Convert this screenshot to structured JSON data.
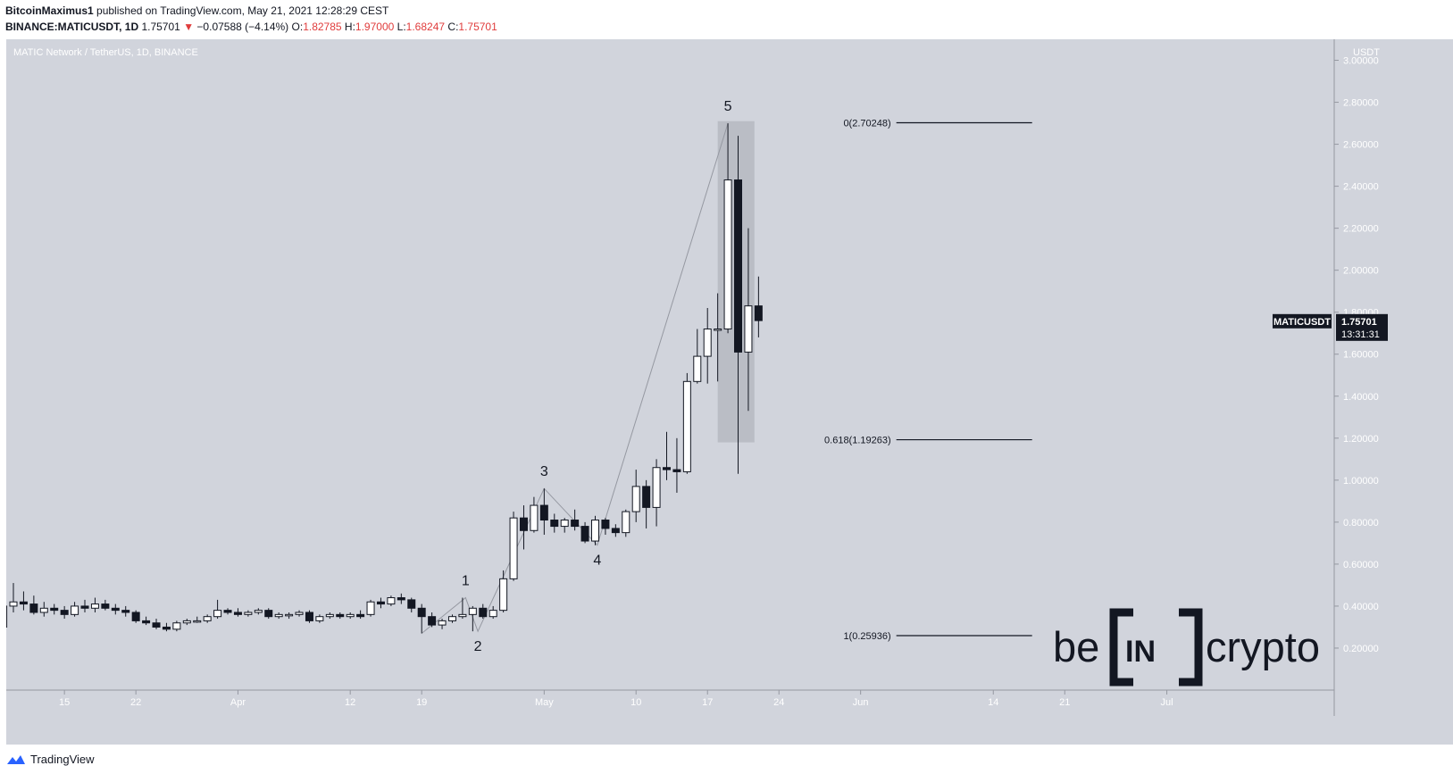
{
  "header": {
    "author": "BitcoinMaximus1",
    "published": " published on TradingView.com, May 21, 2021 12:28:29 CEST",
    "symbol": "BINANCE:MATICUSDT, 1D",
    "last": "1.75701",
    "arrow": "▼",
    "change": "−0.07588 (−4.14%)",
    "o_label": "O:",
    "o_val": "1.82785",
    "h_label": "H:",
    "h_val": "1.97000",
    "l_label": "L:",
    "l_val": "1.68247",
    "c_label": "C:",
    "c_val": "1.75701"
  },
  "footer": {
    "logo_text": "TradingView"
  },
  "colors": {
    "bg": "#d1d4dc",
    "up": "#ffffff",
    "down": "#131722",
    "accent_label_bg": "#131722"
  },
  "chart_data": {
    "type": "candlestick",
    "title": "MATIC Network / TetherUS, 1D, BINANCE",
    "currency": "USDT",
    "y_ticks": [
      "0.20000",
      "0.40000",
      "0.60000",
      "0.80000",
      "1.00000",
      "1.20000",
      "1.40000",
      "1.60000",
      "1.80000",
      "2.00000",
      "2.20000",
      "2.40000",
      "2.60000",
      "2.80000",
      "3.00000"
    ],
    "ylim": [
      0.0,
      3.1
    ],
    "x_ticks": [
      "15",
      "22",
      "Apr",
      "12",
      "19",
      "May",
      "10",
      "17",
      "24",
      "Jun",
      "14",
      "21",
      "Jul"
    ],
    "x_tick_days": [
      14,
      21,
      31,
      42,
      49,
      61,
      70,
      77,
      84,
      92,
      105,
      112,
      122
    ],
    "xlim": [
      8.3,
      138.4
    ],
    "day_origin": "2021-03-01",
    "candles": [
      {
        "d": 8,
        "o": 0.3,
        "h": 0.45,
        "l": 0.26,
        "c": 0.4
      },
      {
        "d": 9,
        "o": 0.4,
        "h": 0.51,
        "l": 0.37,
        "c": 0.42
      },
      {
        "d": 10,
        "o": 0.42,
        "h": 0.47,
        "l": 0.38,
        "c": 0.41
      },
      {
        "d": 11,
        "o": 0.41,
        "h": 0.45,
        "l": 0.36,
        "c": 0.37
      },
      {
        "d": 12,
        "o": 0.37,
        "h": 0.42,
        "l": 0.35,
        "c": 0.39
      },
      {
        "d": 13,
        "o": 0.39,
        "h": 0.41,
        "l": 0.36,
        "c": 0.38
      },
      {
        "d": 14,
        "o": 0.38,
        "h": 0.4,
        "l": 0.34,
        "c": 0.36
      },
      {
        "d": 15,
        "o": 0.36,
        "h": 0.42,
        "l": 0.35,
        "c": 0.4
      },
      {
        "d": 16,
        "o": 0.4,
        "h": 0.43,
        "l": 0.37,
        "c": 0.39
      },
      {
        "d": 17,
        "o": 0.39,
        "h": 0.44,
        "l": 0.37,
        "c": 0.41
      },
      {
        "d": 18,
        "o": 0.41,
        "h": 0.43,
        "l": 0.38,
        "c": 0.39
      },
      {
        "d": 19,
        "o": 0.39,
        "h": 0.41,
        "l": 0.36,
        "c": 0.38
      },
      {
        "d": 20,
        "o": 0.38,
        "h": 0.4,
        "l": 0.35,
        "c": 0.37
      },
      {
        "d": 21,
        "o": 0.37,
        "h": 0.38,
        "l": 0.32,
        "c": 0.33
      },
      {
        "d": 22,
        "o": 0.33,
        "h": 0.35,
        "l": 0.31,
        "c": 0.32
      },
      {
        "d": 23,
        "o": 0.32,
        "h": 0.34,
        "l": 0.29,
        "c": 0.3
      },
      {
        "d": 24,
        "o": 0.3,
        "h": 0.32,
        "l": 0.28,
        "c": 0.29
      },
      {
        "d": 25,
        "o": 0.29,
        "h": 0.33,
        "l": 0.28,
        "c": 0.32
      },
      {
        "d": 26,
        "o": 0.32,
        "h": 0.34,
        "l": 0.31,
        "c": 0.33
      },
      {
        "d": 27,
        "o": 0.33,
        "h": 0.35,
        "l": 0.32,
        "c": 0.33
      },
      {
        "d": 28,
        "o": 0.33,
        "h": 0.36,
        "l": 0.32,
        "c": 0.35
      },
      {
        "d": 29,
        "o": 0.35,
        "h": 0.43,
        "l": 0.34,
        "c": 0.38
      },
      {
        "d": 30,
        "o": 0.38,
        "h": 0.39,
        "l": 0.36,
        "c": 0.37
      },
      {
        "d": 31,
        "o": 0.37,
        "h": 0.39,
        "l": 0.35,
        "c": 0.36
      },
      {
        "d": 32,
        "o": 0.36,
        "h": 0.38,
        "l": 0.35,
        "c": 0.37
      },
      {
        "d": 33,
        "o": 0.37,
        "h": 0.39,
        "l": 0.36,
        "c": 0.38
      },
      {
        "d": 34,
        "o": 0.38,
        "h": 0.39,
        "l": 0.34,
        "c": 0.35
      },
      {
        "d": 35,
        "o": 0.35,
        "h": 0.37,
        "l": 0.34,
        "c": 0.36
      },
      {
        "d": 36,
        "o": 0.36,
        "h": 0.37,
        "l": 0.34,
        "c": 0.36
      },
      {
        "d": 37,
        "o": 0.36,
        "h": 0.38,
        "l": 0.35,
        "c": 0.37
      },
      {
        "d": 38,
        "o": 0.37,
        "h": 0.38,
        "l": 0.32,
        "c": 0.33
      },
      {
        "d": 39,
        "o": 0.33,
        "h": 0.36,
        "l": 0.32,
        "c": 0.35
      },
      {
        "d": 40,
        "o": 0.35,
        "h": 0.37,
        "l": 0.34,
        "c": 0.36
      },
      {
        "d": 41,
        "o": 0.36,
        "h": 0.37,
        "l": 0.34,
        "c": 0.35
      },
      {
        "d": 42,
        "o": 0.35,
        "h": 0.37,
        "l": 0.34,
        "c": 0.36
      },
      {
        "d": 43,
        "o": 0.36,
        "h": 0.38,
        "l": 0.34,
        "c": 0.35
      },
      {
        "d": 44,
        "o": 0.36,
        "h": 0.43,
        "l": 0.35,
        "c": 0.42
      },
      {
        "d": 45,
        "o": 0.42,
        "h": 0.44,
        "l": 0.39,
        "c": 0.41
      },
      {
        "d": 46,
        "o": 0.41,
        "h": 0.45,
        "l": 0.4,
        "c": 0.44
      },
      {
        "d": 47,
        "o": 0.44,
        "h": 0.46,
        "l": 0.41,
        "c": 0.43
      },
      {
        "d": 48,
        "o": 0.43,
        "h": 0.44,
        "l": 0.37,
        "c": 0.39
      },
      {
        "d": 49,
        "o": 0.39,
        "h": 0.41,
        "l": 0.27,
        "c": 0.35
      },
      {
        "d": 50,
        "o": 0.35,
        "h": 0.37,
        "l": 0.3,
        "c": 0.31
      },
      {
        "d": 51,
        "o": 0.31,
        "h": 0.34,
        "l": 0.29,
        "c": 0.33
      },
      {
        "d": 52,
        "o": 0.33,
        "h": 0.36,
        "l": 0.32,
        "c": 0.35
      },
      {
        "d": 53,
        "o": 0.35,
        "h": 0.44,
        "l": 0.34,
        "c": 0.36
      },
      {
        "d": 54,
        "o": 0.36,
        "h": 0.4,
        "l": 0.28,
        "c": 0.39
      },
      {
        "d": 55,
        "o": 0.39,
        "h": 0.41,
        "l": 0.34,
        "c": 0.35
      },
      {
        "d": 56,
        "o": 0.35,
        "h": 0.4,
        "l": 0.34,
        "c": 0.38
      },
      {
        "d": 57,
        "o": 0.38,
        "h": 0.57,
        "l": 0.37,
        "c": 0.53
      },
      {
        "d": 58,
        "o": 0.53,
        "h": 0.85,
        "l": 0.52,
        "c": 0.82
      },
      {
        "d": 59,
        "o": 0.82,
        "h": 0.88,
        "l": 0.67,
        "c": 0.76
      },
      {
        "d": 60,
        "o": 0.76,
        "h": 0.92,
        "l": 0.75,
        "c": 0.88
      },
      {
        "d": 61,
        "o": 0.88,
        "h": 0.96,
        "l": 0.74,
        "c": 0.81
      },
      {
        "d": 62,
        "o": 0.81,
        "h": 0.84,
        "l": 0.75,
        "c": 0.78
      },
      {
        "d": 63,
        "o": 0.78,
        "h": 0.82,
        "l": 0.75,
        "c": 0.81
      },
      {
        "d": 64,
        "o": 0.81,
        "h": 0.86,
        "l": 0.76,
        "c": 0.78
      },
      {
        "d": 65,
        "o": 0.78,
        "h": 0.8,
        "l": 0.7,
        "c": 0.71
      },
      {
        "d": 66,
        "o": 0.71,
        "h": 0.83,
        "l": 0.69,
        "c": 0.81
      },
      {
        "d": 67,
        "o": 0.81,
        "h": 0.82,
        "l": 0.74,
        "c": 0.77
      },
      {
        "d": 68,
        "o": 0.77,
        "h": 0.79,
        "l": 0.73,
        "c": 0.75
      },
      {
        "d": 69,
        "o": 0.75,
        "h": 0.86,
        "l": 0.73,
        "c": 0.85
      },
      {
        "d": 70,
        "o": 0.85,
        "h": 1.05,
        "l": 0.8,
        "c": 0.97
      },
      {
        "d": 71,
        "o": 0.97,
        "h": 1.0,
        "l": 0.77,
        "c": 0.87
      },
      {
        "d": 72,
        "o": 0.87,
        "h": 1.1,
        "l": 0.78,
        "c": 1.06
      },
      {
        "d": 73,
        "o": 1.06,
        "h": 1.23,
        "l": 1.0,
        "c": 1.05
      },
      {
        "d": 74,
        "o": 1.05,
        "h": 1.2,
        "l": 0.94,
        "c": 1.04
      },
      {
        "d": 75,
        "o": 1.04,
        "h": 1.51,
        "l": 1.03,
        "c": 1.47
      },
      {
        "d": 76,
        "o": 1.47,
        "h": 1.72,
        "l": 1.46,
        "c": 1.59
      },
      {
        "d": 77,
        "o": 1.59,
        "h": 1.82,
        "l": 1.46,
        "c": 1.72
      },
      {
        "d": 78,
        "o": 1.72,
        "h": 1.89,
        "l": 1.47,
        "c": 1.72
      },
      {
        "d": 79,
        "o": 1.72,
        "h": 2.7,
        "l": 1.7,
        "c": 2.43
      },
      {
        "d": 80,
        "o": 2.43,
        "h": 2.64,
        "l": 1.03,
        "c": 1.61
      },
      {
        "d": 81,
        "o": 1.61,
        "h": 2.2,
        "l": 1.33,
        "c": 1.83
      },
      {
        "d": 82,
        "o": 1.83,
        "h": 1.97,
        "l": 1.68,
        "c": 1.76
      }
    ],
    "wave_labels": [
      {
        "text": "1",
        "d": 53.3,
        "y": 0.44,
        "pos": "above"
      },
      {
        "text": "2",
        "d": 54.5,
        "y": 0.28,
        "pos": "below"
      },
      {
        "text": "3",
        "d": 61.0,
        "y": 0.96,
        "pos": "above"
      },
      {
        "text": "4",
        "d": 66.2,
        "y": 0.69,
        "pos": "below"
      },
      {
        "text": "5",
        "d": 79.0,
        "y": 2.7,
        "pos": "above"
      }
    ],
    "wave_path": [
      {
        "d": 49.0,
        "y": 0.27
      },
      {
        "d": 53.3,
        "y": 0.44
      },
      {
        "d": 54.5,
        "y": 0.28
      },
      {
        "d": 61.0,
        "y": 0.96
      },
      {
        "d": 66.2,
        "y": 0.69
      },
      {
        "d": 79.0,
        "y": 2.7
      }
    ],
    "highlight_box": {
      "d0": 78.0,
      "d1": 81.6,
      "y0": 1.18,
      "y1": 2.71
    },
    "fib_levels": [
      {
        "label": "0(2.70248)",
        "value": 2.70248
      },
      {
        "label": "0.618(1.19263)",
        "value": 1.19263
      },
      {
        "label": "1(0.25936)",
        "value": 0.25936
      }
    ],
    "fib_line_days": [
      95.5,
      108.8
    ],
    "last_price": {
      "symbol": "MATICUSDT",
      "price": "1.75701",
      "countdown": "13:31:31",
      "value": 1.75701
    },
    "watermark": {
      "left": "be",
      "mid": "IN",
      "right": "crypto"
    }
  }
}
